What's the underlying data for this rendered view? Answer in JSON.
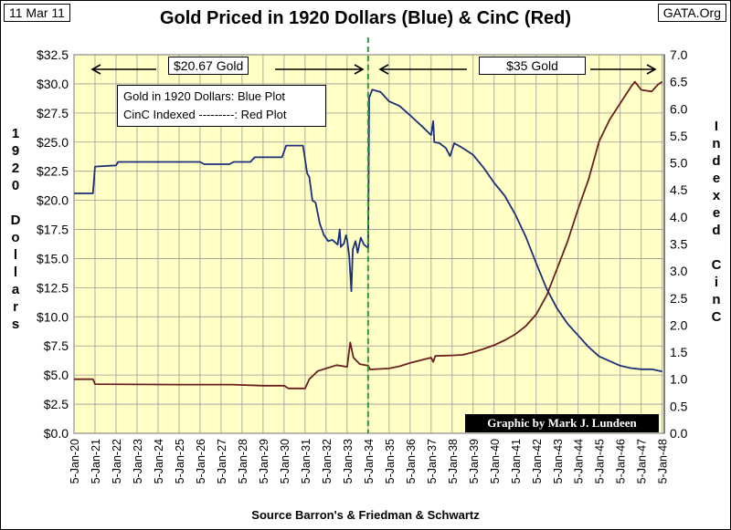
{
  "header": {
    "date": "11 Mar 11",
    "site": "GATA.Org"
  },
  "chart_data": {
    "type": "line",
    "title": "Gold Priced in 1920 Dollars (Blue) & CinC (Red)",
    "xlabel": "Source Barron's & Friedman & Schwartz",
    "ylabel_left": "1920 Dollars",
    "ylabel_right": "Indexed CinC",
    "x_tick_labels": [
      "5-Jan-20",
      "5-Jan-21",
      "5-Jan-22",
      "5-Jan-23",
      "5-Jan-24",
      "5-Jan-25",
      "5-Jan-26",
      "5-Jan-27",
      "5-Jan-28",
      "5-Jan-29",
      "5-Jan-30",
      "5-Jan-31",
      "5-Jan-32",
      "5-Jan-33",
      "5-Jan-34",
      "5-Jan-35",
      "5-Jan-36",
      "5-Jan-37",
      "5-Jan-38",
      "5-Jan-39",
      "5-Jan-40",
      "5-Jan-41",
      "5-Jan-42",
      "5-Jan-43",
      "5-Jan-44",
      "5-Jan-45",
      "5-Jan-46",
      "5-Jan-47",
      "5-Jan-48"
    ],
    "xlim": [
      1920,
      1948.1
    ],
    "y_left_ticks": [
      "$0.0",
      "$2.5",
      "$5.0",
      "$7.5",
      "$10.0",
      "$12.5",
      "$15.0",
      "$17.5",
      "$20.0",
      "$22.5",
      "$25.0",
      "$27.5",
      "$30.0",
      "$32.5"
    ],
    "y_left_range": [
      0,
      32.5
    ],
    "y_right_ticks": [
      "0.0",
      "0.5",
      "1.0",
      "1.5",
      "2.0",
      "2.5",
      "3.0",
      "3.5",
      "4.0",
      "4.5",
      "5.0",
      "5.5",
      "6.0",
      "6.5",
      "7.0"
    ],
    "y_right_range": [
      0,
      7.0
    ],
    "grid": true,
    "series": [
      {
        "name": "Gold in 1920 Dollars: Blue Plot",
        "axis": "left",
        "color": "#1c2f7a",
        "points": [
          [
            1920,
            20.6
          ],
          [
            1920.9,
            20.6
          ],
          [
            1921.0,
            22.9
          ],
          [
            1922,
            23.0
          ],
          [
            1922.1,
            23.3
          ],
          [
            1925,
            23.3
          ],
          [
            1926,
            23.3
          ],
          [
            1926.2,
            23.1
          ],
          [
            1927.4,
            23.1
          ],
          [
            1927.6,
            23.3
          ],
          [
            1928.4,
            23.3
          ],
          [
            1928.6,
            23.7
          ],
          [
            1929.9,
            23.7
          ],
          [
            1930.1,
            24.7
          ],
          [
            1930.9,
            24.7
          ],
          [
            1931.1,
            22.3
          ],
          [
            1931.2,
            22.0
          ],
          [
            1931.35,
            20.0
          ],
          [
            1931.5,
            19.8
          ],
          [
            1931.7,
            18.0
          ],
          [
            1931.9,
            17.0
          ],
          [
            1932.1,
            16.5
          ],
          [
            1932.3,
            16.6
          ],
          [
            1932.55,
            16.2
          ],
          [
            1932.65,
            17.5
          ],
          [
            1932.7,
            16.0
          ],
          [
            1932.85,
            16.3
          ],
          [
            1932.95,
            17.0
          ],
          [
            1933.0,
            16.6
          ],
          [
            1933.1,
            15.2
          ],
          [
            1933.2,
            12.2
          ],
          [
            1933.27,
            15.8
          ],
          [
            1933.4,
            16.5
          ],
          [
            1933.5,
            15.5
          ],
          [
            1933.65,
            16.8
          ],
          [
            1933.8,
            16.2
          ],
          [
            1934.0,
            15.9
          ],
          [
            1934.05,
            28.8
          ],
          [
            1934.2,
            29.5
          ],
          [
            1934.6,
            29.3
          ],
          [
            1935.0,
            28.5
          ],
          [
            1935.5,
            28.1
          ],
          [
            1936.0,
            27.3
          ],
          [
            1936.6,
            26.3
          ],
          [
            1937.0,
            25.6
          ],
          [
            1937.1,
            26.8
          ],
          [
            1937.15,
            25.0
          ],
          [
            1937.4,
            24.9
          ],
          [
            1937.7,
            24.5
          ],
          [
            1937.9,
            23.8
          ],
          [
            1938.1,
            24.9
          ],
          [
            1938.5,
            24.5
          ],
          [
            1939.0,
            23.9
          ],
          [
            1939.5,
            22.8
          ],
          [
            1940.0,
            21.5
          ],
          [
            1940.5,
            20.4
          ],
          [
            1941.0,
            18.8
          ],
          [
            1941.5,
            16.9
          ],
          [
            1942.0,
            14.6
          ],
          [
            1942.5,
            12.4
          ],
          [
            1943.0,
            10.7
          ],
          [
            1943.5,
            9.4
          ],
          [
            1944.0,
            8.4
          ],
          [
            1944.5,
            7.4
          ],
          [
            1945.0,
            6.6
          ],
          [
            1945.5,
            6.2
          ],
          [
            1946.0,
            5.8
          ],
          [
            1946.5,
            5.6
          ],
          [
            1947.0,
            5.5
          ],
          [
            1947.5,
            5.5
          ],
          [
            1948.0,
            5.3
          ]
        ]
      },
      {
        "name": "CinC Indexed ---------: Red Plot",
        "axis": "right",
        "color": "#6b1f1f",
        "points": [
          [
            1920,
            1.0
          ],
          [
            1920.9,
            1.0
          ],
          [
            1921.0,
            0.91
          ],
          [
            1925,
            0.9
          ],
          [
            1926,
            0.9
          ],
          [
            1927.5,
            0.9
          ],
          [
            1929,
            0.88
          ],
          [
            1930,
            0.88
          ],
          [
            1930.2,
            0.83
          ],
          [
            1931.0,
            0.83
          ],
          [
            1931.2,
            1.0
          ],
          [
            1931.6,
            1.15
          ],
          [
            1932.0,
            1.2
          ],
          [
            1932.5,
            1.26
          ],
          [
            1933.0,
            1.23
          ],
          [
            1933.15,
            1.68
          ],
          [
            1933.3,
            1.4
          ],
          [
            1933.6,
            1.28
          ],
          [
            1934.0,
            1.25
          ],
          [
            1934.1,
            1.18
          ],
          [
            1935.0,
            1.2
          ],
          [
            1935.5,
            1.24
          ],
          [
            1936.0,
            1.3
          ],
          [
            1936.6,
            1.36
          ],
          [
            1937.0,
            1.4
          ],
          [
            1937.1,
            1.32
          ],
          [
            1937.2,
            1.43
          ],
          [
            1938.0,
            1.44
          ],
          [
            1938.5,
            1.45
          ],
          [
            1939.0,
            1.5
          ],
          [
            1939.5,
            1.56
          ],
          [
            1940.0,
            1.63
          ],
          [
            1940.5,
            1.72
          ],
          [
            1941.0,
            1.83
          ],
          [
            1941.5,
            1.98
          ],
          [
            1942.0,
            2.2
          ],
          [
            1942.5,
            2.55
          ],
          [
            1943.0,
            3.05
          ],
          [
            1943.5,
            3.55
          ],
          [
            1944.0,
            4.15
          ],
          [
            1944.5,
            4.7
          ],
          [
            1945.0,
            5.4
          ],
          [
            1945.5,
            5.8
          ],
          [
            1946.0,
            6.1
          ],
          [
            1946.5,
            6.4
          ],
          [
            1946.7,
            6.5
          ],
          [
            1947.0,
            6.35
          ],
          [
            1947.5,
            6.32
          ],
          [
            1947.8,
            6.45
          ],
          [
            1948.0,
            6.5
          ]
        ]
      }
    ],
    "annotations": {
      "marker_1934": "dashed green vertical line at 5-Jan-34",
      "gold_2067": "$20.67 Gold",
      "gold_35": "$35 Gold",
      "legend_line1": "Gold in 1920 Dollars: Blue Plot",
      "legend_line2": "CinC Indexed ---------:  Red Plot",
      "credit": "Graphic by Mark J. Lundeen"
    }
  },
  "left_axis_vertical": [
    "1",
    "9",
    "2",
    "0",
    "",
    "D",
    "o",
    "l",
    "l",
    "a",
    "r",
    "s"
  ],
  "right_axis_vertical": [
    "I",
    "n",
    "d",
    "e",
    "x",
    "e",
    "d",
    "",
    "C",
    "i",
    "n",
    "C"
  ]
}
